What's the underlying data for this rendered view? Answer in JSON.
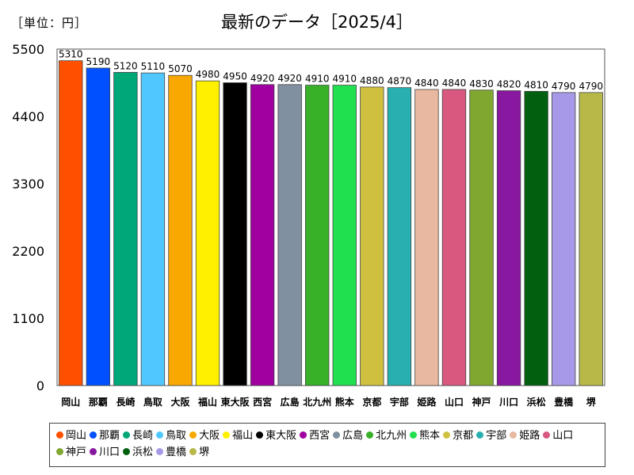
{
  "unit_label": "［単位：円］",
  "chart_data": {
    "type": "bar",
    "title": "最新のデータ［2025/4］",
    "categories": [
      "岡山",
      "那覇",
      "長崎",
      "鳥取",
      "大阪",
      "福山",
      "東大阪",
      "西宮",
      "広島",
      "北九州",
      "熊本",
      "京都",
      "宇部",
      "姫路",
      "山口",
      "神戸",
      "川口",
      "浜松",
      "豊橋",
      "堺"
    ],
    "values": [
      5310,
      5190,
      5120,
      5110,
      5070,
      4980,
      4950,
      4920,
      4920,
      4910,
      4910,
      4880,
      4870,
      4840,
      4840,
      4830,
      4820,
      4810,
      4790,
      4790
    ],
    "colors": [
      "#ff5000",
      "#0050ff",
      "#00a878",
      "#50c8ff",
      "#f8a800",
      "#fff000",
      "#000000",
      "#a000a0",
      "#8090a0",
      "#38b028",
      "#20e050",
      "#d0c040",
      "#28b0b0",
      "#e8b8a0",
      "#d85880",
      "#80a830",
      "#8818a0",
      "#006010",
      "#a898e8",
      "#b8b848"
    ],
    "ylim": [
      0,
      5500
    ],
    "yticks": [
      0,
      1100,
      2200,
      3300,
      4400,
      5500
    ],
    "legend": "bottom",
    "xlabel": "",
    "ylabel": ""
  }
}
